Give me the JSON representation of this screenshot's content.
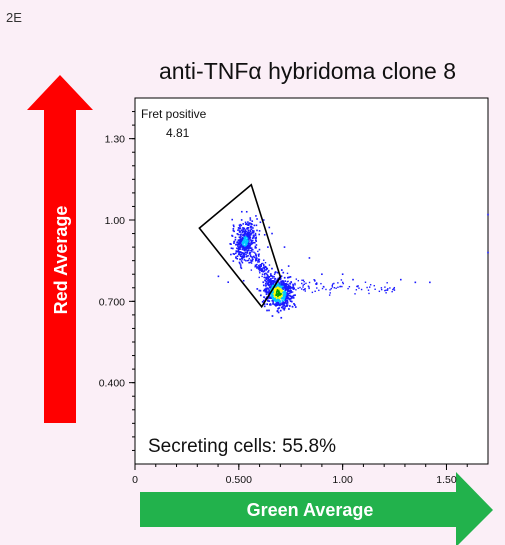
{
  "figure_label": "2E",
  "chart_data": {
    "type": "scatter",
    "title": "anti-TNFα hybridoma clone 8",
    "xlabel": "Green Average",
    "ylabel": "Red Average",
    "xlim": [
      0,
      1.7
    ],
    "ylim": [
      0.1,
      1.45
    ],
    "x_ticks": [
      {
        "value": 0,
        "label": "0"
      },
      {
        "value": 0.5,
        "label": "0.500"
      },
      {
        "value": 1.0,
        "label": "1.00"
      },
      {
        "value": 1.5,
        "label": "1.50"
      }
    ],
    "y_ticks": [
      {
        "value": 0.4,
        "label": "0.400"
      },
      {
        "value": 0.7,
        "label": "0.700"
      },
      {
        "value": 1.0,
        "label": "1.00"
      },
      {
        "value": 1.3,
        "label": "1.30"
      }
    ],
    "gate": {
      "name": "Fret positive",
      "value_label": "4.81",
      "vertices": [
        [
          0.31,
          0.97
        ],
        [
          0.56,
          1.13
        ],
        [
          0.7,
          0.79
        ],
        [
          0.61,
          0.68
        ]
      ]
    },
    "clusters": [
      {
        "name": "gated population",
        "center": [
          0.53,
          0.92
        ],
        "spread": [
          0.03,
          0.035
        ],
        "density": "high"
      },
      {
        "name": "main population",
        "center": [
          0.69,
          0.73
        ],
        "spread": [
          0.03,
          0.025
        ],
        "density": "peak"
      }
    ],
    "annotation": "Secreting cells: 55.8%",
    "grid": false,
    "colors": {
      "low": "#1a1aff",
      "mid": "#00c8ff",
      "high": "#ffff00",
      "peak": "#00a000"
    }
  }
}
